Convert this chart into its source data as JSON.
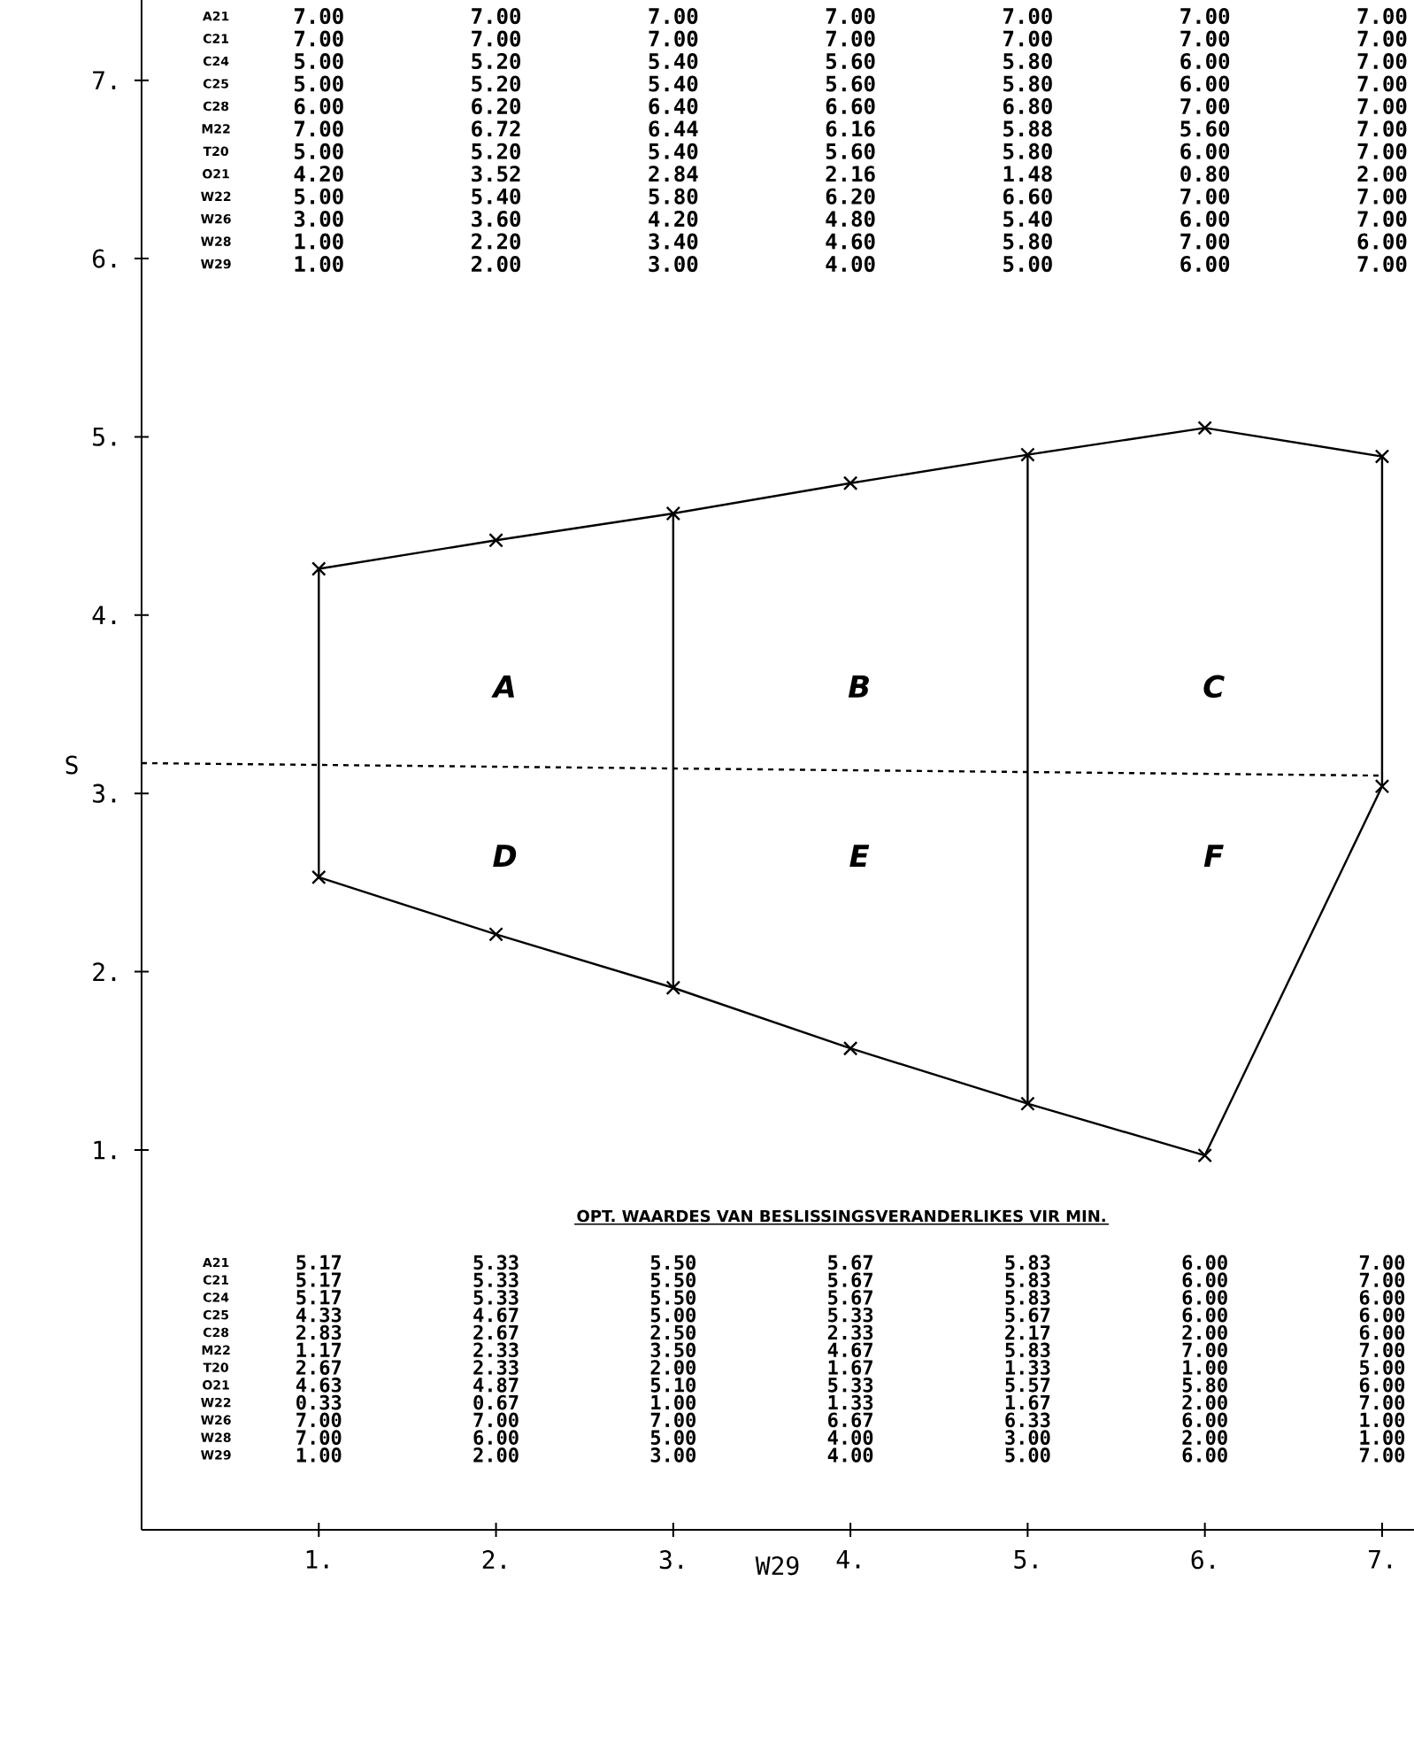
{
  "chart_data": {
    "type": "line",
    "xlabel": "W29",
    "ylabel": "S",
    "xlim": [
      0,
      7.18
    ],
    "ylim": [
      -1.13,
      7.45
    ],
    "xticks": [
      {
        "value": 1,
        "label": "1."
      },
      {
        "value": 2,
        "label": "2."
      },
      {
        "value": 3,
        "label": "3."
      },
      {
        "value": 4,
        "label": "4."
      },
      {
        "value": 5,
        "label": "5."
      },
      {
        "value": 6,
        "label": "6."
      },
      {
        "value": 7,
        "label": "7."
      }
    ],
    "yticks": [
      {
        "value": 1,
        "label": "1."
      },
      {
        "value": 2,
        "label": "2."
      },
      {
        "value": 3,
        "label": "3."
      },
      {
        "value": 4,
        "label": "4."
      },
      {
        "value": 5,
        "label": "5."
      },
      {
        "value": 6,
        "label": "6."
      },
      {
        "value": 7,
        "label": "7."
      }
    ],
    "series": [
      {
        "color": "#000000",
        "marker": "cross",
        "x": [
          1,
          2,
          3,
          4,
          5,
          6,
          7
        ],
        "values": [
          4.26,
          4.42,
          4.57,
          4.74,
          4.9,
          5.05,
          4.89
        ]
      },
      {
        "color": "#000000",
        "marker": "cross",
        "x": [
          1,
          2,
          3,
          4,
          5,
          6,
          7
        ],
        "values": [
          2.53,
          2.21,
          1.91,
          1.57,
          1.26,
          0.97,
          3.04
        ]
      },
      {
        "color": "#000000",
        "marker": "none",
        "x": [
          1,
          1
        ],
        "values": [
          2.53,
          4.26
        ]
      },
      {
        "color": "#000000",
        "marker": "none",
        "x": [
          3,
          3
        ],
        "values": [
          1.91,
          4.57
        ]
      },
      {
        "color": "#000000",
        "marker": "none",
        "x": [
          5,
          5
        ],
        "values": [
          1.26,
          4.9
        ]
      },
      {
        "color": "#000000",
        "marker": "none",
        "x": [
          7,
          7
        ],
        "values": [
          3.04,
          4.89
        ]
      },
      {
        "color": "#000000",
        "marker": "none",
        "line_style": "dashed",
        "x": [
          0,
          7
        ],
        "values": [
          3.17,
          3.1
        ]
      }
    ],
    "annotations": [
      "A21",
      "7.00",
      "7.00",
      "7.00",
      "7.00",
      "7.00",
      "7.00",
      "7.00",
      "C21",
      "7.00",
      "7.00",
      "7.00",
      "7.00",
      "7.00",
      "7.00",
      "7.00",
      "C24",
      "5.00",
      "5.20",
      "5.40",
      "5.60",
      "5.80",
      "6.00",
      "7.00",
      "C25",
      "5.00",
      "5.20",
      "5.40",
      "5.60",
      "5.80",
      "6.00",
      "7.00",
      "C28",
      "6.00",
      "6.20",
      "6.40",
      "6.60",
      "6.80",
      "7.00",
      "7.00",
      "M22",
      "7.00",
      "6.72",
      "6.44",
      "6.16",
      "5.88",
      "5.60",
      "7.00",
      "T20",
      "5.00",
      "5.20",
      "5.40",
      "5.60",
      "5.80",
      "6.00",
      "7.00",
      "O21",
      "4.20",
      "3.52",
      "2.84",
      "2.16",
      "1.48",
      "0.80",
      "2.00",
      "W22",
      "5.00",
      "5.40",
      "5.80",
      "6.20",
      "6.60",
      "7.00",
      "7.00",
      "W26",
      "3.00",
      "3.60",
      "4.20",
      "4.80",
      "5.40",
      "6.00",
      "7.00",
      "W28",
      "1.00",
      "2.20",
      "3.40",
      "4.60",
      "5.80",
      "7.00",
      "6.00",
      "W29",
      "1.00",
      "2.00",
      "3.00",
      "4.00",
      "5.00",
      "6.00",
      "7.00",
      "OPT. WAARDES VAN BESLISSINGSVERANDERLIKES VIR MIN.",
      "A21",
      "5.17",
      "5.33",
      "5.50",
      "5.67",
      "5.83",
      "6.00",
      "7.00",
      "C21",
      "5.17",
      "5.33",
      "5.50",
      "5.67",
      "5.83",
      "6.00",
      "7.00",
      "C24",
      "5.17",
      "5.33",
      "5.50",
      "5.67",
      "5.83",
      "6.00",
      "6.00",
      "C25",
      "4.33",
      "4.67",
      "5.00",
      "5.33",
      "5.67",
      "6.00",
      "6.00",
      "C28",
      "2.83",
      "2.67",
      "2.50",
      "2.33",
      "2.17",
      "2.00",
      "6.00",
      "M22",
      "1.17",
      "2.33",
      "3.50",
      "4.67",
      "5.83",
      "7.00",
      "7.00",
      "T20",
      "2.67",
      "2.33",
      "2.00",
      "1.67",
      "1.33",
      "1.00",
      "5.00",
      "O21",
      "4.63",
      "4.87",
      "5.10",
      "5.33",
      "5.57",
      "5.80",
      "6.00",
      "W22",
      "0.33",
      "0.67",
      "1.00",
      "1.33",
      "1.67",
      "2.00",
      "7.00",
      "W26",
      "7.00",
      "7.00",
      "7.00",
      "6.67",
      "6.33",
      "6.00",
      "1.00",
      "W28",
      "7.00",
      "6.00",
      "5.00",
      "4.00",
      "3.00",
      "2.00",
      "1.00",
      "W29",
      "1.00",
      "2.00",
      "3.00",
      "4.00",
      "5.00",
      "6.00",
      "7.00",
      "A",
      "B",
      "C",
      "D",
      "E",
      "F"
    ]
  }
}
